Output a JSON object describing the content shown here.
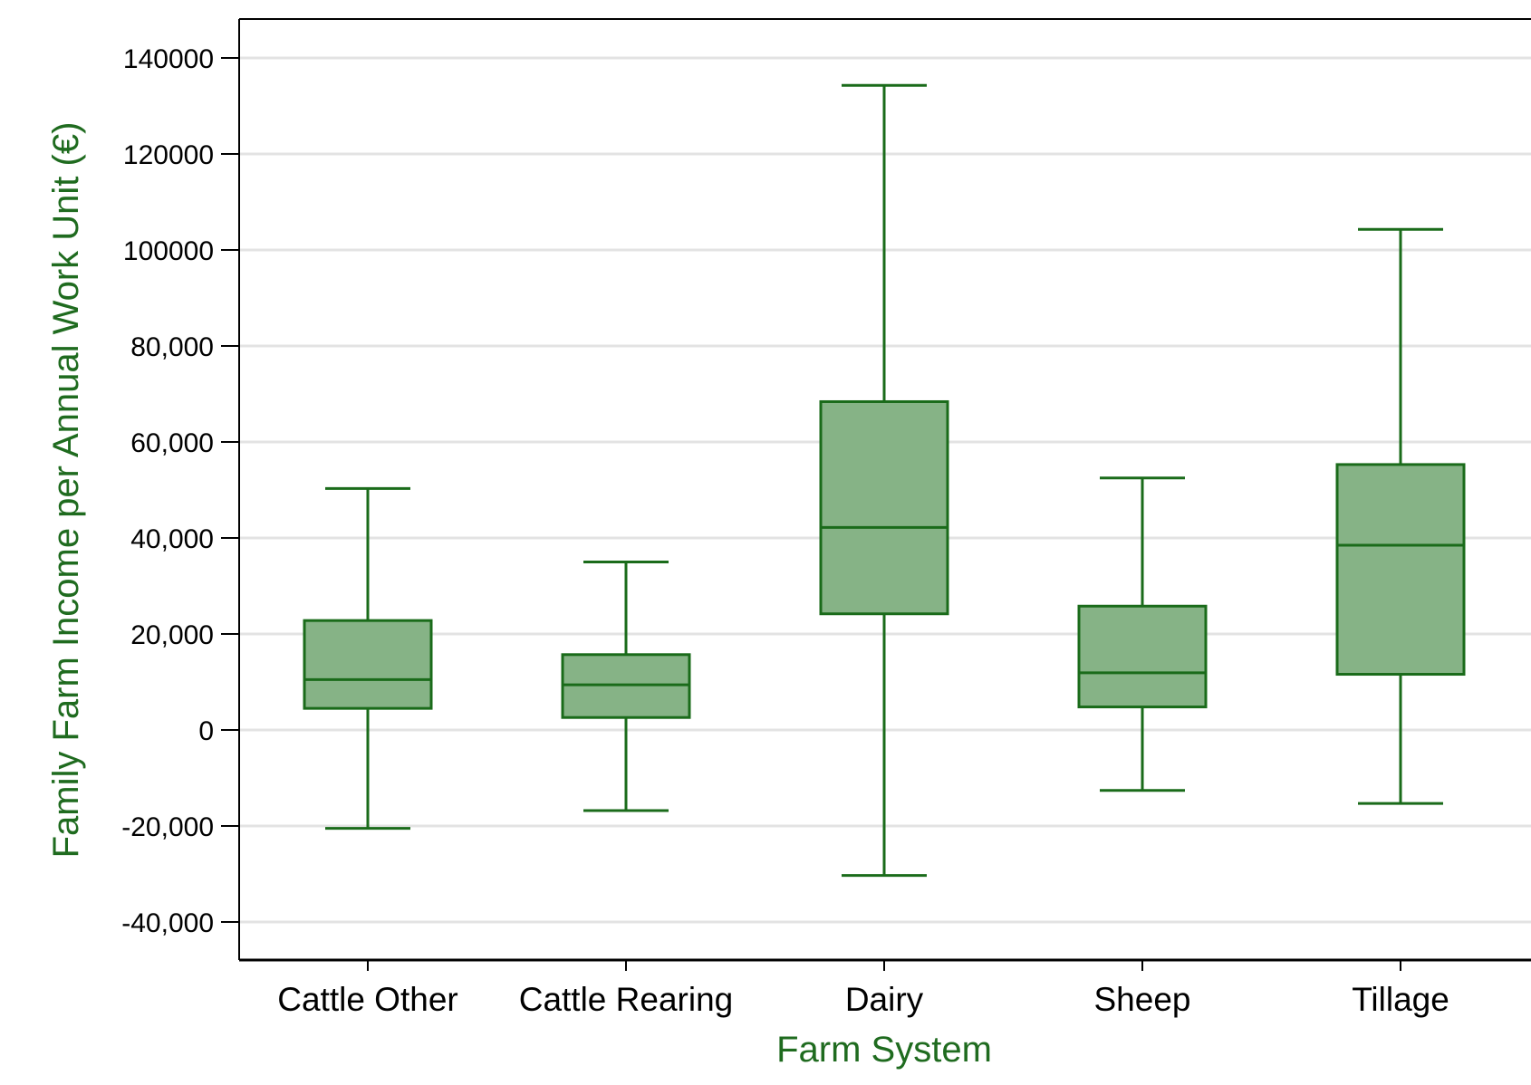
{
  "chart_data": {
    "type": "box",
    "xlabel": "Farm System",
    "ylabel": "Family Farm Income per Annual Work Unit (€)",
    "ylim": [
      -49000,
      149000
    ],
    "yticks": [
      {
        "value": 140000,
        "label": "140000"
      },
      {
        "value": 120000,
        "label": "120000"
      },
      {
        "value": 100000,
        "label": "100000"
      },
      {
        "value": 80000,
        "label": "80,000"
      },
      {
        "value": 60000,
        "label": "60,000"
      },
      {
        "value": 40000,
        "label": "40,000"
      },
      {
        "value": 20000,
        "label": "20,000"
      },
      {
        "value": 0,
        "label": "0"
      },
      {
        "value": -20000,
        "label": "-20,000"
      },
      {
        "value": -40000,
        "label": "-40,000"
      }
    ],
    "grid": true,
    "categories": [
      "Cattle Other",
      "Cattle Rearing",
      "Dairy",
      "Sheep",
      "Tillage"
    ],
    "boxes": [
      {
        "category": "Cattle Other",
        "whisker_low": -20500,
        "q1": 4500,
        "median": 10500,
        "q3": 22800,
        "whisker_high": 50300
      },
      {
        "category": "Cattle Rearing",
        "whisker_low": -16800,
        "q1": 2600,
        "median": 9400,
        "q3": 15700,
        "whisker_high": 35000
      },
      {
        "category": "Dairy",
        "whisker_low": -30300,
        "q1": 24200,
        "median": 42200,
        "q3": 68400,
        "whisker_high": 134300
      },
      {
        "category": "Sheep",
        "whisker_low": -12600,
        "q1": 4800,
        "median": 11900,
        "q3": 25800,
        "whisker_high": 52500
      },
      {
        "category": "Tillage",
        "whisker_low": -15300,
        "q1": 11600,
        "median": 38500,
        "q3": 55300,
        "whisker_high": 104300
      }
    ],
    "colors": {
      "box_fill": "#86b386",
      "box_stroke": "#1a6b1a",
      "grid": "#e3e3e3",
      "axis": "#000000",
      "title": "#1f6b1f"
    }
  }
}
